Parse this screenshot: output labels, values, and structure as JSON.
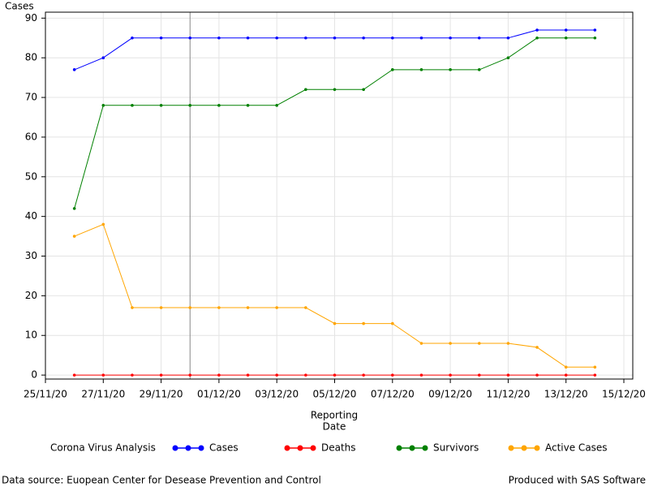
{
  "chart_data": {
    "type": "line",
    "y_label": "Cases",
    "x_label": [
      "Reporting",
      "Date"
    ],
    "x": [
      "26/11/20",
      "27/11/20",
      "28/11/20",
      "29/11/20",
      "30/11/20",
      "01/12/20",
      "02/12/20",
      "03/12/20",
      "04/12/20",
      "05/12/20",
      "06/12/20",
      "07/12/20",
      "08/12/20",
      "09/12/20",
      "10/12/20",
      "11/12/20",
      "12/12/20",
      "13/12/20",
      "14/12/20"
    ],
    "series": [
      {
        "name": "Cases",
        "color": "#0000ff",
        "values": [
          77,
          80,
          85,
          85,
          85,
          85,
          85,
          85,
          85,
          85,
          85,
          85,
          85,
          85,
          85,
          85,
          87,
          87,
          87
        ]
      },
      {
        "name": "Deaths",
        "color": "#ff0000",
        "values": [
          0,
          0,
          0,
          0,
          0,
          0,
          0,
          0,
          0,
          0,
          0,
          0,
          0,
          0,
          0,
          0,
          0,
          0,
          0
        ]
      },
      {
        "name": "Survivors",
        "color": "#008000",
        "values": [
          42,
          68,
          68,
          68,
          68,
          68,
          68,
          68,
          72,
          72,
          72,
          77,
          77,
          77,
          77,
          80,
          85,
          85,
          85
        ]
      },
      {
        "name": "Active Cases",
        "color": "#ffa500",
        "values": [
          35,
          38,
          17,
          17,
          17,
          17,
          17,
          17,
          17,
          13,
          13,
          13,
          8,
          8,
          8,
          8,
          7,
          2,
          2
        ]
      }
    ],
    "xlim": [
      "25/11/20",
      "15/12/20"
    ],
    "xticks": [
      "25/11/20",
      "27/11/20",
      "29/11/20",
      "01/12/20",
      "03/12/20",
      "05/12/20",
      "07/12/20",
      "09/12/20",
      "11/12/20",
      "13/12/20",
      "15/12/20"
    ],
    "ylim": [
      -1,
      91.5
    ],
    "yticks": [
      0,
      10,
      20,
      30,
      40,
      50,
      60,
      70,
      80,
      90
    ],
    "grid": true,
    "reference_line": "30/11/20",
    "legend_title": "Corona Virus Analysis",
    "footnote_left": "Data source: Euopean Center for Desease Prevention and Control",
    "footnote_right": "Produced with SAS Software"
  }
}
